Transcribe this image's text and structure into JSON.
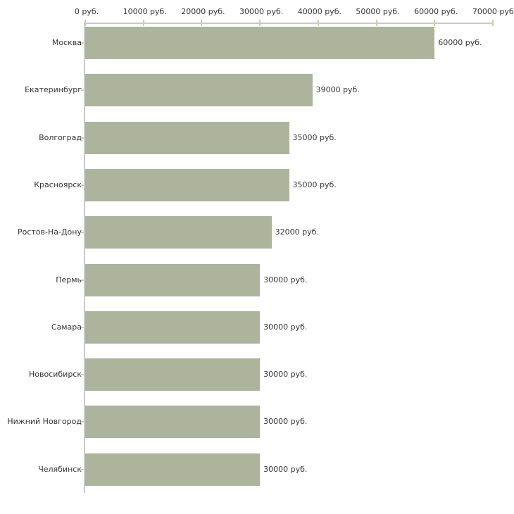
{
  "chart_data": {
    "type": "bar",
    "orientation": "horizontal",
    "title": "",
    "xlabel": "",
    "ylabel": "",
    "unit": "руб.",
    "categories": [
      "Москва",
      "Екатеринбург",
      "Волгоград",
      "Красноярск",
      "Ростов-На-Дону",
      "Пермь",
      "Самара",
      "Новосибирск",
      "Нижний Новгород",
      "Челябинск"
    ],
    "values": [
      60000,
      39000,
      35000,
      35000,
      32000,
      30000,
      30000,
      30000,
      30000,
      30000
    ],
    "value_labels": [
      "60000 руб.",
      "39000 руб.",
      "35000 руб.",
      "35000 руб.",
      "32000 руб.",
      "30000 руб.",
      "30000 руб.",
      "30000 руб.",
      "30000 руб.",
      "30000 руб."
    ],
    "x_axis": {
      "position": "top",
      "min": 0,
      "max": 70000,
      "ticks": [
        0,
        10000,
        20000,
        30000,
        40000,
        50000,
        60000,
        70000
      ],
      "tick_labels": [
        "0 руб.",
        "10000 руб.",
        "20000 руб.",
        "30000 руб.",
        "40000 руб.",
        "50000 руб.",
        "60000 руб.",
        "70000 руб."
      ]
    },
    "grid": false,
    "legend": false,
    "colors": {
      "bar": "#aeb49b",
      "axis_line": "#c9c9c9",
      "tick_mark": "#ccd0ad",
      "text": "#333333",
      "background": "#ffffff"
    }
  }
}
